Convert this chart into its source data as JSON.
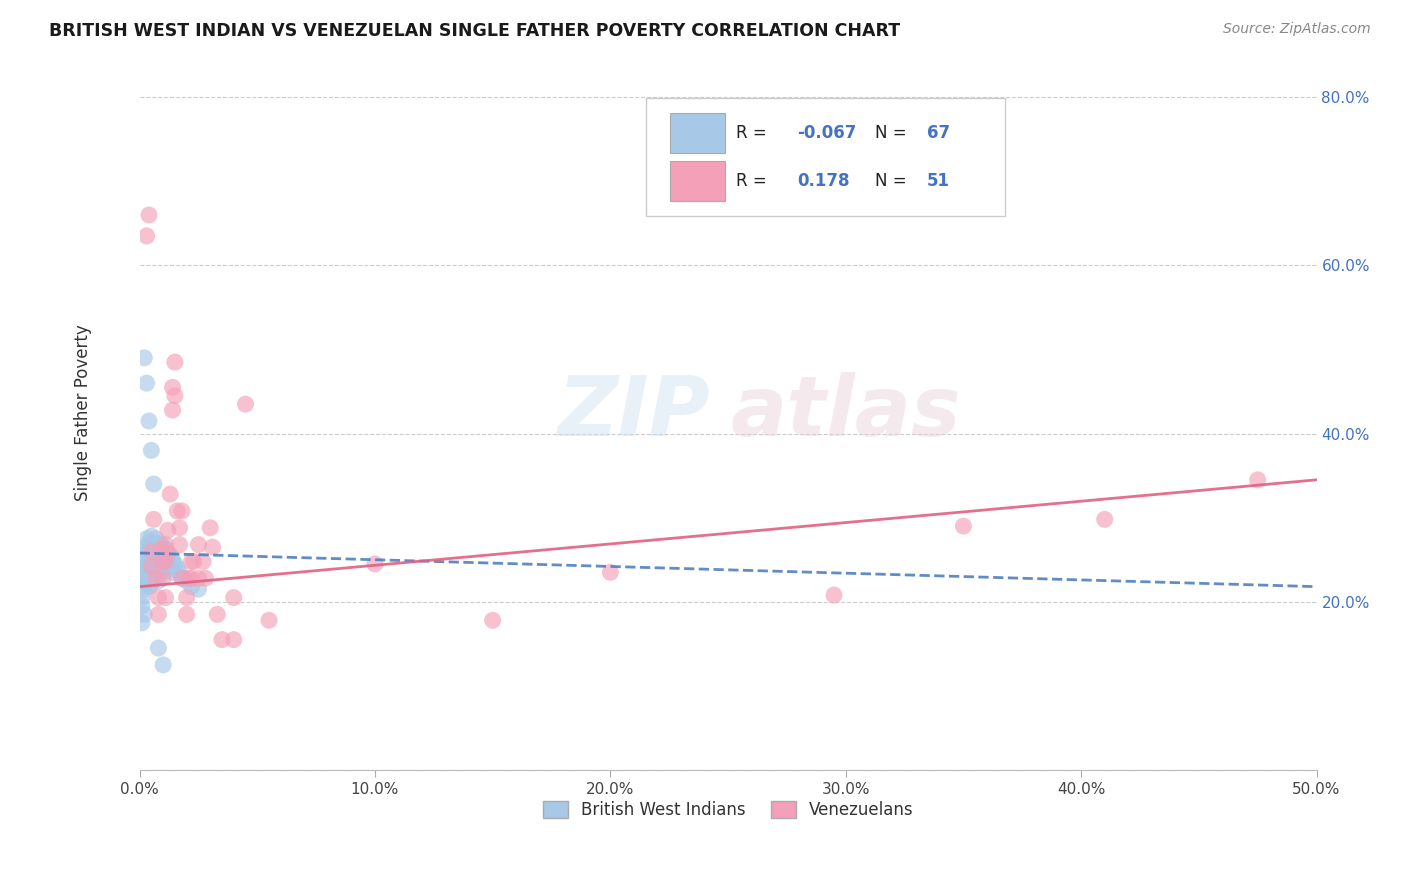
{
  "title": "BRITISH WEST INDIAN VS VENEZUELAN SINGLE FATHER POVERTY CORRELATION CHART",
  "source": "Source: ZipAtlas.com",
  "ylabel": "Single Father Poverty",
  "legend_label1": "British West Indians",
  "legend_label2": "Venezuelans",
  "bwi_R": -0.067,
  "bwi_N": 67,
  "ven_R": 0.178,
  "ven_N": 51,
  "bwi_color": "#a8c8e8",
  "ven_color": "#f4a0b8",
  "bwi_line_color": "#5080c0",
  "ven_line_color": "#e06080",
  "x_min": 0.0,
  "x_max": 0.5,
  "y_min": 0.0,
  "y_max": 0.85,
  "x_ticks": [
    0.0,
    0.1,
    0.2,
    0.3,
    0.4,
    0.5
  ],
  "x_tick_labels": [
    "0.0%",
    "10.0%",
    "20.0%",
    "30.0%",
    "40.0%",
    "50.0%"
  ],
  "y_ticks": [
    0.0,
    0.2,
    0.4,
    0.6,
    0.8
  ],
  "y_tick_labels": [
    "",
    "20.0%",
    "40.0%",
    "60.0%",
    "80.0%"
  ],
  "bwi_scatter": [
    [
      0.001,
      0.255
    ],
    [
      0.001,
      0.245
    ],
    [
      0.001,
      0.235
    ],
    [
      0.002,
      0.265
    ],
    [
      0.002,
      0.25
    ],
    [
      0.002,
      0.24
    ],
    [
      0.002,
      0.225
    ],
    [
      0.002,
      0.215
    ],
    [
      0.003,
      0.275
    ],
    [
      0.003,
      0.26
    ],
    [
      0.003,
      0.248
    ],
    [
      0.003,
      0.235
    ],
    [
      0.003,
      0.222
    ],
    [
      0.004,
      0.27
    ],
    [
      0.004,
      0.255
    ],
    [
      0.004,
      0.242
    ],
    [
      0.004,
      0.23
    ],
    [
      0.004,
      0.218
    ],
    [
      0.005,
      0.278
    ],
    [
      0.005,
      0.262
    ],
    [
      0.005,
      0.248
    ],
    [
      0.005,
      0.235
    ],
    [
      0.005,
      0.222
    ],
    [
      0.006,
      0.268
    ],
    [
      0.006,
      0.255
    ],
    [
      0.006,
      0.242
    ],
    [
      0.006,
      0.228
    ],
    [
      0.007,
      0.275
    ],
    [
      0.007,
      0.26
    ],
    [
      0.007,
      0.245
    ],
    [
      0.007,
      0.232
    ],
    [
      0.008,
      0.27
    ],
    [
      0.008,
      0.255
    ],
    [
      0.008,
      0.24
    ],
    [
      0.008,
      0.225
    ],
    [
      0.009,
      0.268
    ],
    [
      0.009,
      0.252
    ],
    [
      0.009,
      0.238
    ],
    [
      0.01,
      0.265
    ],
    [
      0.01,
      0.25
    ],
    [
      0.01,
      0.235
    ],
    [
      0.011,
      0.262
    ],
    [
      0.011,
      0.247
    ],
    [
      0.012,
      0.258
    ],
    [
      0.012,
      0.243
    ],
    [
      0.013,
      0.255
    ],
    [
      0.013,
      0.24
    ],
    [
      0.014,
      0.25
    ],
    [
      0.014,
      0.235
    ],
    [
      0.015,
      0.245
    ],
    [
      0.016,
      0.24
    ],
    [
      0.017,
      0.235
    ],
    [
      0.018,
      0.228
    ],
    [
      0.02,
      0.225
    ],
    [
      0.022,
      0.218
    ],
    [
      0.025,
      0.215
    ],
    [
      0.003,
      0.46
    ],
    [
      0.004,
      0.415
    ],
    [
      0.005,
      0.38
    ],
    [
      0.006,
      0.34
    ],
    [
      0.002,
      0.49
    ],
    [
      0.008,
      0.145
    ],
    [
      0.01,
      0.125
    ],
    [
      0.001,
      0.205
    ],
    [
      0.001,
      0.195
    ],
    [
      0.002,
      0.185
    ],
    [
      0.001,
      0.175
    ]
  ],
  "ven_scatter": [
    [
      0.003,
      0.635
    ],
    [
      0.004,
      0.66
    ],
    [
      0.005,
      0.26
    ],
    [
      0.005,
      0.242
    ],
    [
      0.006,
      0.298
    ],
    [
      0.007,
      0.228
    ],
    [
      0.008,
      0.205
    ],
    [
      0.008,
      0.185
    ],
    [
      0.009,
      0.262
    ],
    [
      0.01,
      0.248
    ],
    [
      0.01,
      0.228
    ],
    [
      0.011,
      0.268
    ],
    [
      0.011,
      0.248
    ],
    [
      0.011,
      0.205
    ],
    [
      0.012,
      0.285
    ],
    [
      0.012,
      0.258
    ],
    [
      0.013,
      0.328
    ],
    [
      0.014,
      0.455
    ],
    [
      0.014,
      0.428
    ],
    [
      0.015,
      0.485
    ],
    [
      0.015,
      0.445
    ],
    [
      0.016,
      0.308
    ],
    [
      0.017,
      0.288
    ],
    [
      0.017,
      0.268
    ],
    [
      0.018,
      0.308
    ],
    [
      0.018,
      0.228
    ],
    [
      0.02,
      0.205
    ],
    [
      0.02,
      0.185
    ],
    [
      0.021,
      0.228
    ],
    [
      0.022,
      0.248
    ],
    [
      0.022,
      0.228
    ],
    [
      0.023,
      0.248
    ],
    [
      0.025,
      0.268
    ],
    [
      0.025,
      0.228
    ],
    [
      0.027,
      0.248
    ],
    [
      0.028,
      0.228
    ],
    [
      0.03,
      0.288
    ],
    [
      0.031,
      0.265
    ],
    [
      0.033,
      0.185
    ],
    [
      0.035,
      0.155
    ],
    [
      0.04,
      0.155
    ],
    [
      0.04,
      0.205
    ],
    [
      0.055,
      0.178
    ],
    [
      0.045,
      0.435
    ],
    [
      0.41,
      0.298
    ],
    [
      0.35,
      0.29
    ],
    [
      0.2,
      0.235
    ],
    [
      0.1,
      0.245
    ],
    [
      0.15,
      0.178
    ],
    [
      0.295,
      0.208
    ],
    [
      0.475,
      0.345
    ]
  ],
  "bwi_line_x": [
    0.0,
    0.5
  ],
  "bwi_line_y": [
    0.258,
    0.218
  ],
  "ven_line_x": [
    0.0,
    0.5
  ],
  "ven_line_y": [
    0.218,
    0.345
  ]
}
